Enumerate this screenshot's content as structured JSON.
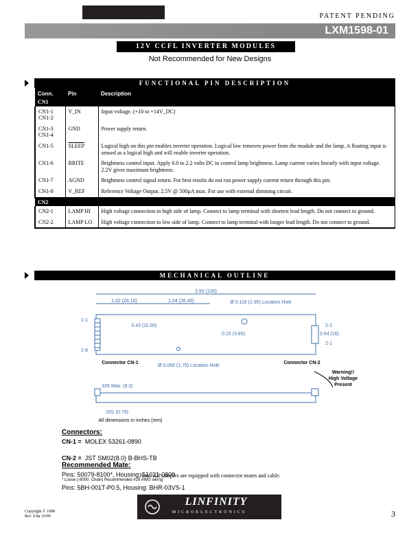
{
  "header": {
    "patent": "PATENT PENDING",
    "part_number": "LXM1598-01",
    "title": "12V CCFL INVERTER MODULES",
    "subtitle": "Not Recommended for New Designs"
  },
  "sections": {
    "func_pin": "FUNCTIONAL PIN DESCRIPTION",
    "mech": "MECHANICAL OUTLINE"
  },
  "pin_table": {
    "headers": {
      "conn": "Conn.",
      "pin": "Pin",
      "desc": "Description"
    },
    "group1": "CN1",
    "rows1": [
      {
        "conn": "CN1-1 CN1-2",
        "pin": "V_IN",
        "desc": "Input voltage.  (+10 to +14V_DC)"
      },
      {
        "conn": "CN1-3 CN1-4",
        "pin": "GND",
        "desc": "Power supply return."
      },
      {
        "conn": "CN1-5",
        "pin": "SLEEP",
        "overline": true,
        "desc": "Logical high on this pin enables inverter operation.  Logical low removes power from the module and the lamp.  A floating input is sensed as a logical high and will enable inverter operation."
      },
      {
        "conn": "CN1-6",
        "pin": "BRITE",
        "desc": "Brightness control input.  Apply 0.0 to 2.2 volts DC to control lamp brightness.  Lamp current varies linearly with input voltage.  2.2V gives maximum brightness."
      },
      {
        "conn": "CN1-7",
        "pin": "AGND",
        "desc": "Brightness control signal return.  For best results do not run power supply current return through this pin."
      },
      {
        "conn": "CN1-8",
        "pin": "V_REF",
        "desc": "Reference Voltage Output.  2.5V @ 500µA max.  For use with external dimming circuit."
      }
    ],
    "group2": "CN2",
    "rows2": [
      {
        "conn": "CN2-1",
        "pin": "LAMP HI",
        "desc": "High voltage connection to high side of lamp.  Connect to lamp terminal with shortest lead length.  Do not connect to ground."
      },
      {
        "conn": "CN2-2",
        "pin": "LAMP LO",
        "desc": "High voltage connection to low side of lamp.  Connect to lamp terminal with longer lead length.  Do not connect to ground."
      }
    ]
  },
  "mech": {
    "dims": {
      "width": "3.93 (100)",
      "d1": "1.02 (26.10)",
      "d2": "1.04 (26.40)",
      "d3": "0.43 (11.00)",
      "d4": "0.15 (3.85)",
      "loc_hole": "Ø 0.116 (2.95) Location Hole",
      "loc_hole2": "Ø 0.068 (1.75) Location Hole",
      "h": "0.64 (16)",
      "cn1_label": "Connector CN-1",
      "cn2_label": "Connector CN-2",
      "pin11": "1-1",
      "pin18": "1-8",
      "pin21": "2-1",
      "pin22": "2-2",
      "side_h": ".326 Max. (8.3)",
      "side_w": ".031 (0.79)",
      "all_dims": "All dimensions in inches (mm)",
      "warn1": "Warning!!",
      "warn2": "High Voltage",
      "warn3": "Present"
    }
  },
  "connectors": {
    "hd1": "Connectors:",
    "hd2": "Recommended Mate:",
    "cn1_l": "CN-1  =",
    "cn1_r": "MOLEX 53261-0890",
    "cn1_mate": "Pins: 50079-8100*,   Housing: 51021-0800",
    "cn1_note": "* Loose (-8000, Chain) Recommended #26 AWG wiring",
    "cn2_l": "CN-2  =",
    "cn2_r": "JST SM02(8.0) B-BHS-TB",
    "cn2_mate": "Pins: 5BH-001T-P0.5,   Housing: BHR-03VS-1"
  },
  "note": "Note: All samples are equipped with connector mates and cable.",
  "footer": {
    "logo_big": "LINFINITY",
    "logo_sm": "MICROELECTRONICS",
    "copyright1": "Copyright © 1998",
    "copyright2": "Rev. 0.8a 10/00",
    "page": "3"
  }
}
